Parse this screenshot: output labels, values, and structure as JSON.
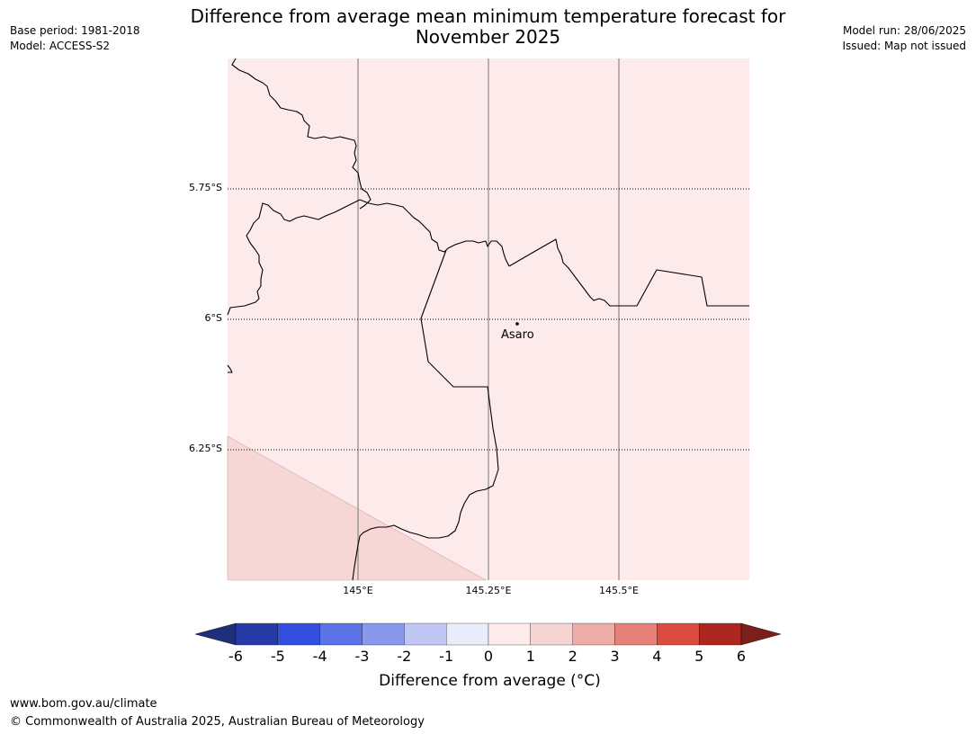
{
  "header": {
    "title_line1": "Difference from average mean minimum temperature forecast for",
    "title_line2": "November 2025",
    "base_period": "Base period: 1981-2018",
    "model": "Model: ACCESS-S2",
    "model_run": "Model run: 28/06/2025",
    "issued": "Issued: Map not issued"
  },
  "map": {
    "lat_labels": [
      "5.75°S",
      "6°S",
      "6.25°S"
    ],
    "lon_labels": [
      "145°E",
      "145.25°E",
      "145.5°E"
    ],
    "town": "Asaro",
    "fill_main_category": "0 to 1",
    "fill_corner_category": "1 to 2"
  },
  "colorbar": {
    "ticks": [
      "-6",
      "-5",
      "-4",
      "-3",
      "-2",
      "-1",
      "0",
      "1",
      "2",
      "3",
      "4",
      "5",
      "6"
    ],
    "colors": [
      "#273ba8",
      "#3250dd",
      "#5b73e6",
      "#8898ec",
      "#c0c7f4",
      "#e9ecfb",
      "#fcebea",
      "#f6d4d2",
      "#eeaca7",
      "#e68079",
      "#dc4b3f",
      "#ab2720"
    ],
    "under_color": "#1f2f7a",
    "over_color": "#7a1f1a",
    "label": "Difference from average (°C)"
  },
  "footer": {
    "url": "www.bom.gov.au/climate",
    "copyright": "© Commonwealth of Australia 2025, Australian Bureau of Meteorology"
  }
}
